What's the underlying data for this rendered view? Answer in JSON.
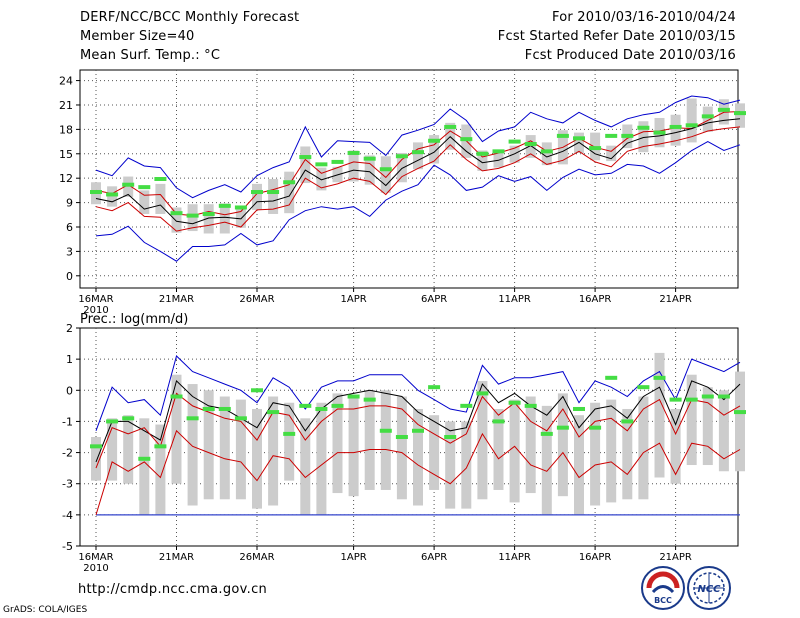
{
  "header": {
    "title": "DERF/NCC/BCC Monthly Forecast",
    "member_size": "Member Size=40",
    "variable": "Mean Surf. Temp.: °C",
    "period": "For 2010/03/16-2010/04/24",
    "started": "Fcst Started Refer Date 2010/03/15",
    "produced": "Fcst Produced Date 2010/03/16"
  },
  "footer": {
    "url": "http://cmdp.ncc.cma.gov.cn",
    "grads": "GrADS: COLA/IGES"
  },
  "logos": {
    "bcc": "BCC",
    "ncc": "NCC"
  },
  "colors": {
    "max_min": "#0000cc",
    "spread": "#cc0000",
    "mean": "#000000",
    "obs": "#44dd44",
    "box": "#cccccc",
    "floor": "#3344cc"
  },
  "chart_data": [
    {
      "type": "line",
      "name": "temperature",
      "title": "Mean Surf. Temp.: °C",
      "ylim": [
        -1.5,
        25.3
      ],
      "yticks": [
        0,
        3,
        6,
        9,
        12,
        15,
        18,
        21,
        24
      ],
      "x_tick_labels": [
        "16MAR",
        "21MAR",
        "26MAR",
        "1APR",
        "6APR",
        "11APR",
        "16APR",
        "21APR"
      ],
      "x_tick_days": [
        0,
        5,
        10,
        16,
        21,
        26,
        31,
        36
      ],
      "year_label": "2010",
      "series": [
        {
          "name": "max",
          "color": "#0000cc",
          "values": [
            13.0,
            12.3,
            14.5,
            13.5,
            13.3,
            10.8,
            9.6,
            10.5,
            11.2,
            10.3,
            12.3,
            13.3,
            14.0,
            18.3,
            14.6,
            16.6,
            16.5,
            16.4,
            14.8,
            17.3,
            17.9,
            18.6,
            20.5,
            19.1,
            16.5,
            17.8,
            18.3,
            20.1,
            19.3,
            18.8,
            20.1,
            19.1,
            18.3,
            19.3,
            19.8,
            20.1,
            21.3,
            22.1,
            21.9,
            21.1,
            21.6
          ]
        },
        {
          "name": "spread_high",
          "color": "#cc0000",
          "values": [
            10.5,
            10.1,
            11.2,
            9.9,
            10.0,
            7.6,
            7.4,
            7.9,
            7.5,
            7.9,
            10.1,
            10.6,
            11.2,
            14.3,
            12.6,
            13.3,
            14.0,
            13.8,
            12.1,
            14.3,
            15.6,
            16.1,
            17.8,
            16.6,
            14.6,
            15.1,
            15.7,
            16.6,
            15.3,
            15.8,
            16.9,
            15.8,
            15.3,
            16.9,
            17.7,
            17.8,
            18.2,
            18.1,
            19.1,
            20.1,
            20.2
          ]
        },
        {
          "name": "mean",
          "color": "#000000",
          "values": [
            9.5,
            9.1,
            10.0,
            8.2,
            8.7,
            6.7,
            6.4,
            7.1,
            7.2,
            7.0,
            9.1,
            9.2,
            9.8,
            13.0,
            11.8,
            12.4,
            13.0,
            12.8,
            11.1,
            13.2,
            14.2,
            15.2,
            17.1,
            15.3,
            13.9,
            14.2,
            15.0,
            16.0,
            14.6,
            15.3,
            16.4,
            15.0,
            14.4,
            16.3,
            17.0,
            17.2,
            17.6,
            18.1,
            18.8,
            19.1,
            19.3
          ]
        },
        {
          "name": "spread_low",
          "color": "#cc0000",
          "values": [
            8.5,
            8.0,
            9.0,
            7.3,
            7.2,
            5.5,
            5.9,
            6.2,
            6.6,
            6.0,
            8.1,
            8.2,
            8.7,
            12.0,
            10.8,
            11.3,
            12.0,
            11.6,
            10.0,
            12.2,
            13.2,
            14.1,
            16.1,
            14.3,
            12.9,
            13.2,
            13.9,
            15.0,
            13.7,
            14.2,
            15.3,
            14.0,
            13.4,
            15.3,
            15.9,
            16.2,
            16.6,
            17.1,
            17.8,
            18.1,
            18.3
          ]
        },
        {
          "name": "min",
          "color": "#0000cc",
          "values": [
            4.9,
            5.1,
            6.1,
            4.1,
            3.0,
            1.8,
            3.6,
            3.6,
            3.8,
            5.2,
            3.8,
            4.3,
            6.9,
            8.0,
            8.5,
            8.2,
            8.5,
            7.3,
            9.3,
            10.4,
            11.2,
            13.6,
            12.4,
            10.5,
            10.9,
            12.3,
            11.6,
            12.2,
            10.5,
            12.1,
            13.1,
            12.4,
            12.6,
            13.7,
            13.5,
            12.6,
            13.9,
            15.4,
            16.5,
            15.4,
            16.1
          ]
        }
      ],
      "boxes": [
        [
          8.8,
          11.5
        ],
        [
          8.5,
          11.0
        ],
        [
          9.7,
          12.2
        ],
        [
          7.6,
          10.5
        ],
        [
          7.6,
          11.3
        ],
        [
          5.3,
          8.4
        ],
        [
          5.5,
          8.8
        ],
        [
          5.2,
          8.8
        ],
        [
          5.2,
          8.9
        ],
        [
          5.9,
          8.4
        ],
        [
          8.1,
          11.3
        ],
        [
          7.6,
          11.9
        ],
        [
          7.7,
          12.8
        ],
        [
          11.4,
          15.9
        ],
        [
          10.5,
          13.3
        ],
        [
          11.5,
          13.4
        ],
        [
          11.6,
          15.4
        ],
        [
          11.2,
          14.8
        ],
        [
          10.2,
          14.7
        ],
        [
          11.5,
          15.1
        ],
        [
          13.1,
          16.4
        ],
        [
          13.8,
          17.3
        ],
        [
          15.5,
          18.8
        ],
        [
          14.5,
          18.6
        ],
        [
          12.9,
          15.4
        ],
        [
          13.3,
          15.1
        ],
        [
          13.9,
          16.0
        ],
        [
          14.5,
          17.3
        ],
        [
          13.6,
          16.4
        ],
        [
          13.7,
          17.9
        ],
        [
          15.1,
          17.6
        ],
        [
          14.2,
          17.6
        ],
        [
          14.1,
          16.0
        ],
        [
          15.7,
          18.6
        ],
        [
          15.2,
          19.0
        ],
        [
          15.8,
          19.4
        ],
        [
          16.0,
          19.8
        ],
        [
          16.4,
          21.8
        ],
        [
          17.7,
          20.8
        ],
        [
          18.6,
          21.7
        ],
        [
          18.2,
          21.2
        ]
      ],
      "obs": [
        10.3,
        10.0,
        11.2,
        10.9,
        11.9,
        7.7,
        7.4,
        7.6,
        8.6,
        8.4,
        10.3,
        10.3,
        11.5,
        14.6,
        13.7,
        14.0,
        15.1,
        14.4,
        13.1,
        14.7,
        15.2,
        16.6,
        18.3,
        16.8,
        15.0,
        15.3,
        16.5,
        16.2,
        15.3,
        17.2,
        16.9,
        15.7,
        17.2,
        17.2,
        18.2,
        17.6,
        18.3,
        18.5,
        19.6,
        20.4,
        20.0
      ]
    },
    {
      "type": "line",
      "name": "precipitation",
      "title": "Prec.: log(mm/d)",
      "ylim": [
        -5,
        2
      ],
      "yticks": [
        -5,
        -4,
        -3,
        -2,
        -1,
        0,
        1,
        2
      ],
      "x_tick_labels": [
        "16MAR",
        "21MAR",
        "26MAR",
        "1APR",
        "6APR",
        "11APR",
        "16APR",
        "21APR"
      ],
      "x_tick_days": [
        0,
        5,
        10,
        16,
        21,
        26,
        31,
        36
      ],
      "year_label": "2010",
      "floor_value": -4,
      "series": [
        {
          "name": "max",
          "color": "#0000cc",
          "values": [
            -1.3,
            0.1,
            -0.4,
            -0.3,
            -0.8,
            1.1,
            0.6,
            0.4,
            0.2,
            0.0,
            -0.4,
            0.4,
            0.1,
            -0.6,
            0.1,
            0.3,
            0.3,
            0.5,
            0.5,
            0.5,
            0.0,
            -0.3,
            -0.6,
            -0.7,
            0.8,
            0.2,
            0.4,
            0.4,
            0.5,
            0.6,
            -0.4,
            0.3,
            0.1,
            -0.2,
            0.3,
            0.6,
            -0.3,
            1.0,
            0.8,
            0.6,
            0.9
          ]
        },
        {
          "name": "spread_high",
          "color": "#000000",
          "values": [
            -2.3,
            -1.0,
            -1.0,
            -1.3,
            -1.6,
            0.3,
            -0.2,
            -0.5,
            -0.6,
            -0.9,
            -1.2,
            -0.4,
            -0.5,
            -1.3,
            -0.6,
            -0.2,
            -0.1,
            0.0,
            -0.1,
            -0.2,
            -0.7,
            -1.0,
            -1.3,
            -1.2,
            0.2,
            -0.4,
            -0.1,
            -0.5,
            -0.8,
            -0.2,
            -1.2,
            -0.6,
            -0.5,
            -0.9,
            -0.2,
            0.1,
            -1.1,
            0.3,
            0.1,
            -0.3,
            0.2
          ]
        },
        {
          "name": "mean",
          "color": "#cc0000",
          "values": [
            -2.5,
            -1.2,
            -1.4,
            -1.2,
            -1.8,
            -0.1,
            -0.5,
            -0.7,
            -0.9,
            -1.0,
            -1.6,
            -0.7,
            -0.8,
            -1.6,
            -1.0,
            -0.6,
            -0.6,
            -0.5,
            -0.5,
            -0.6,
            -1.1,
            -1.4,
            -1.7,
            -1.4,
            -0.2,
            -0.8,
            -0.4,
            -1.0,
            -1.3,
            -0.6,
            -1.5,
            -1.0,
            -0.9,
            -1.3,
            -0.6,
            -0.3,
            -1.4,
            -0.3,
            -0.4,
            -0.8,
            -0.5
          ]
        },
        {
          "name": "spread_low",
          "color": "#cc0000",
          "values": [
            -4.0,
            -2.3,
            -2.6,
            -2.3,
            -2.8,
            -1.3,
            -1.8,
            -2.0,
            -2.2,
            -2.3,
            -2.9,
            -2.1,
            -2.2,
            -2.8,
            -2.4,
            -2.0,
            -2.0,
            -1.9,
            -1.9,
            -2.0,
            -2.4,
            -2.7,
            -3.0,
            -2.5,
            -1.4,
            -2.2,
            -1.8,
            -2.4,
            -2.6,
            -2.0,
            -2.8,
            -2.4,
            -2.3,
            -2.7,
            -2.0,
            -1.7,
            -2.7,
            -1.7,
            -1.8,
            -2.2,
            -1.9
          ]
        },
        {
          "name": "min",
          "color": "#cc0000",
          "values": [
            -4.0,
            -4.0,
            -4.0,
            -4.0,
            -4.0,
            -4.0,
            -4.0,
            -4.0,
            -4.0,
            -4.0,
            -4.0,
            -4.0,
            -4.0,
            -4.0,
            -4.0,
            -4.0,
            -4.0,
            -4.0,
            -4.0,
            -4.0,
            -4.0,
            -4.0,
            -4.0,
            -4.0,
            -4.0,
            -4.0,
            -4.0,
            -4.0,
            -4.0,
            -4.0,
            -4.0,
            -4.0,
            -4.0,
            -4.0,
            -4.0,
            -4.0,
            -4.0,
            -4.0,
            -4.0,
            -4.0,
            -4.0
          ]
        }
      ],
      "boxes": [
        [
          -2.9,
          -1.5
        ],
        [
          -2.9,
          -0.9
        ],
        [
          -3.0,
          -0.8
        ],
        [
          -4.0,
          -0.9
        ],
        [
          -4.0,
          -1.1
        ],
        [
          -3.0,
          0.5
        ],
        [
          -3.7,
          0.2
        ],
        [
          -3.5,
          0.0
        ],
        [
          -3.5,
          -0.2
        ],
        [
          -3.5,
          -0.3
        ],
        [
          -3.8,
          -0.6
        ],
        [
          -3.7,
          -0.2
        ],
        [
          -2.9,
          -0.4
        ],
        [
          -4.0,
          -0.9
        ],
        [
          -4.0,
          -0.4
        ],
        [
          -3.3,
          -0.1
        ],
        [
          -3.4,
          -0.2
        ],
        [
          -3.2,
          0.0
        ],
        [
          -3.2,
          0.0
        ],
        [
          -3.5,
          -0.2
        ],
        [
          -3.7,
          -0.6
        ],
        [
          -3.2,
          -0.8
        ],
        [
          -3.8,
          -1.0
        ],
        [
          -3.8,
          -1.0
        ],
        [
          -3.5,
          0.3
        ],
        [
          -3.2,
          -0.6
        ],
        [
          -3.6,
          -0.3
        ],
        [
          -3.3,
          -0.2
        ],
        [
          -4.0,
          -0.5
        ],
        [
          -3.4,
          -0.1
        ],
        [
          -4.0,
          -0.8
        ],
        [
          -3.7,
          -0.4
        ],
        [
          -3.6,
          -0.3
        ],
        [
          -3.5,
          -0.6
        ],
        [
          -3.5,
          -0.2
        ],
        [
          -2.8,
          1.2
        ],
        [
          -3.0,
          -0.6
        ],
        [
          -2.4,
          0.5
        ],
        [
          -2.4,
          0.1
        ],
        [
          -2.6,
          0.0
        ],
        [
          -2.6,
          0.6
        ]
      ],
      "obs": [
        -1.8,
        -1.0,
        -0.9,
        -2.2,
        -1.8,
        -0.2,
        -0.9,
        -0.6,
        -0.6,
        -0.9,
        0.0,
        -0.7,
        -1.4,
        -0.5,
        -0.6,
        -0.5,
        -0.2,
        -0.3,
        -1.3,
        -1.5,
        -1.3,
        0.1,
        -1.5,
        -0.5,
        -0.1,
        -1.0,
        -0.4,
        -0.5,
        -1.4,
        -1.2,
        -0.6,
        -1.2,
        0.4,
        -1.0,
        0.1,
        0.4,
        -0.3,
        -0.3,
        -0.2,
        -0.2,
        -0.7
      ]
    }
  ]
}
